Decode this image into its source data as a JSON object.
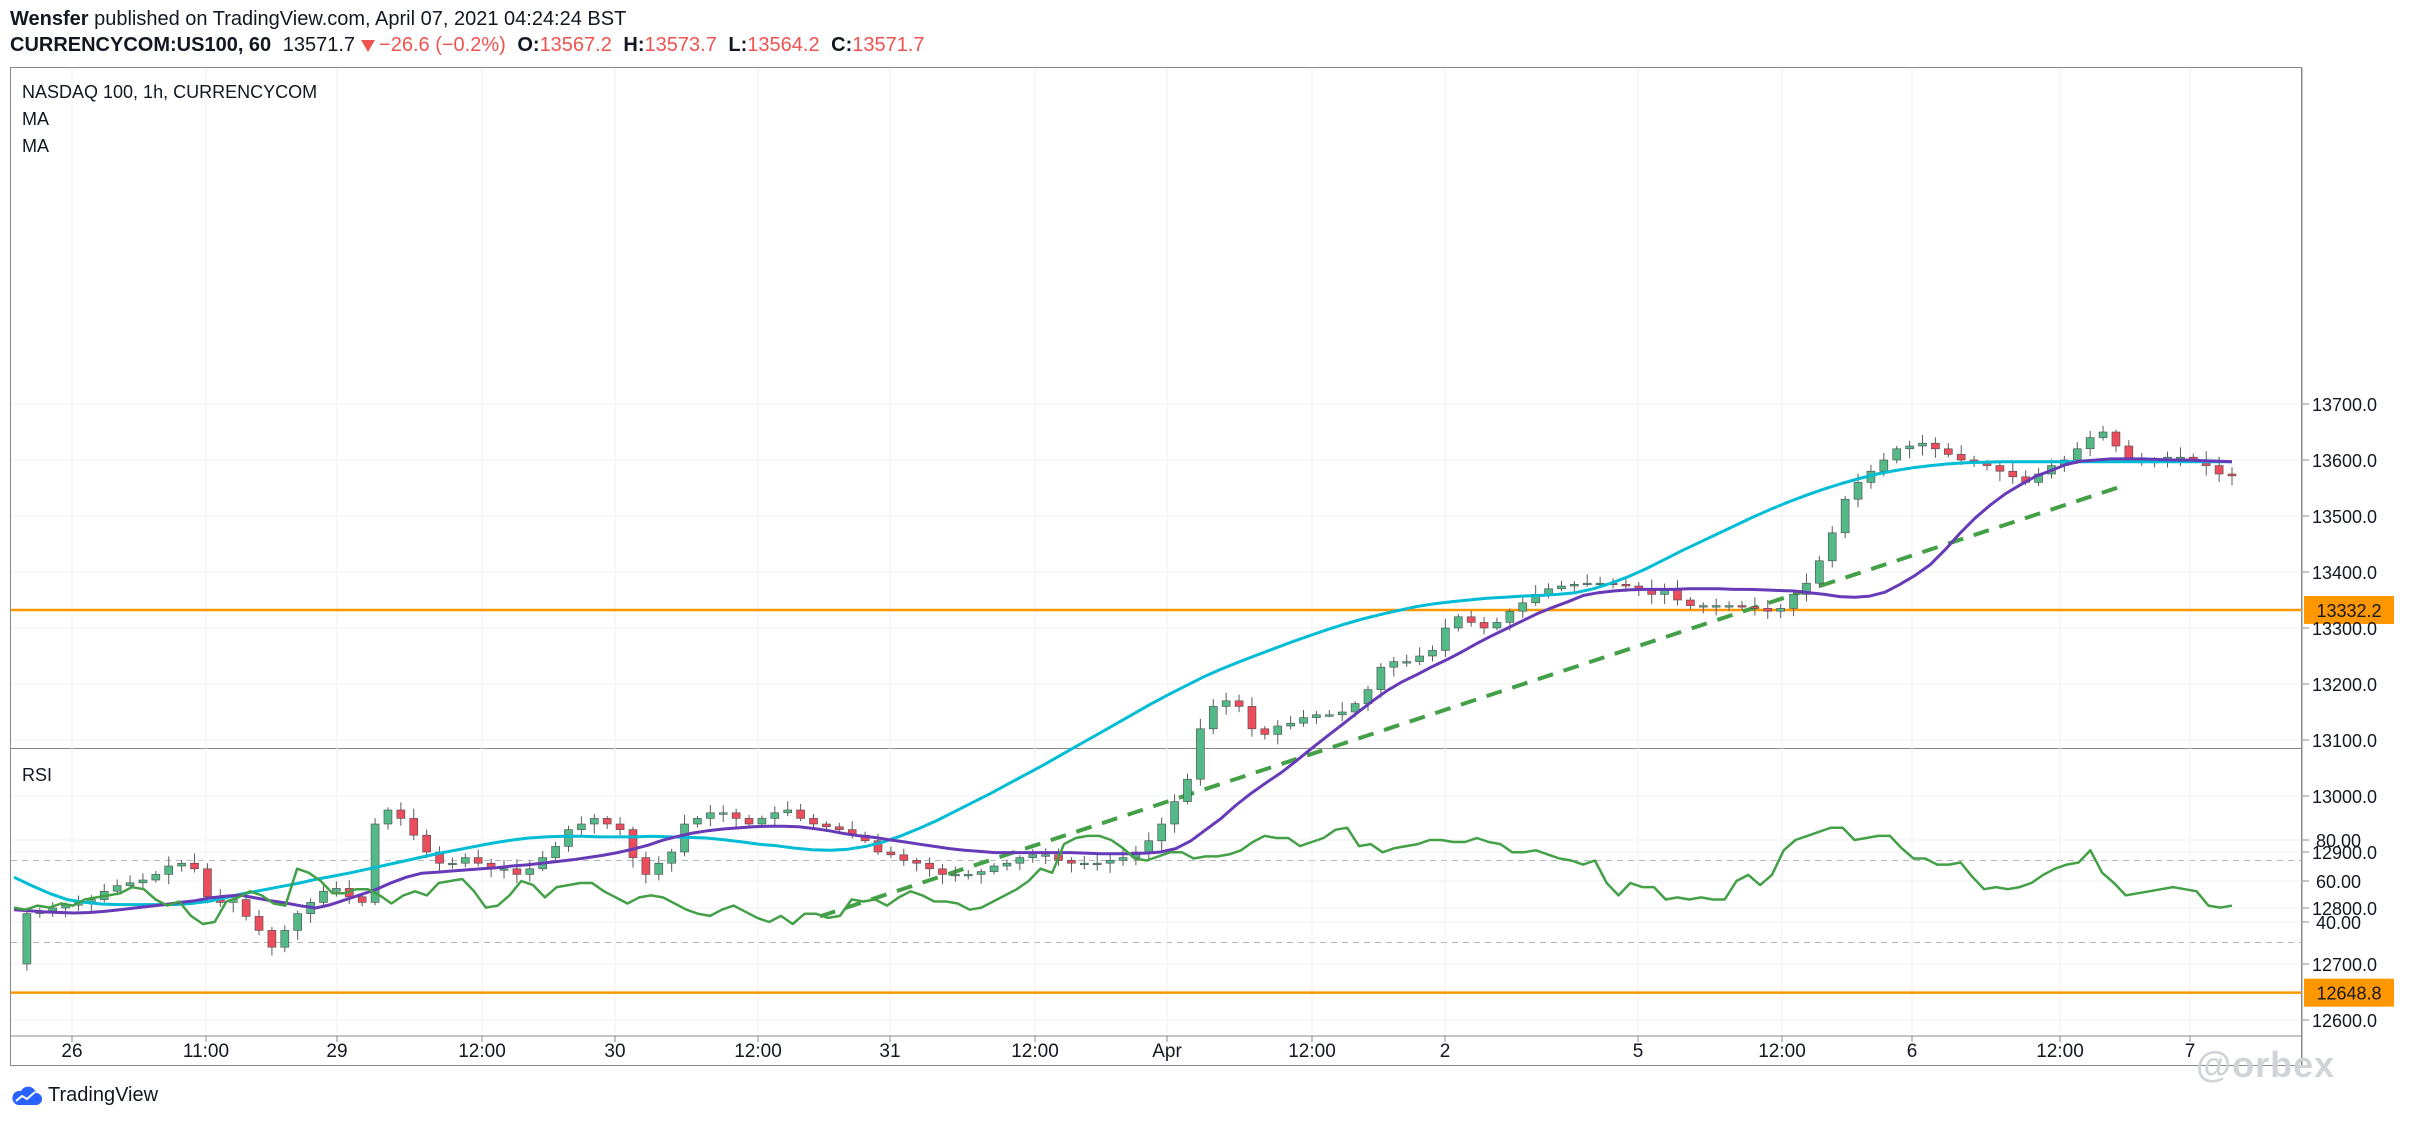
{
  "header": {
    "publisher_line_user": "Wensfer",
    "publisher_line_rest": "published on TradingView.com, April 07, 2021 04:24:24 BST",
    "symbol": "CURRENCYCOM:US100, 60",
    "last": "13571.7",
    "change": "−26.6 (−0.2%)",
    "open_label": "O:",
    "open": "13567.2",
    "high_label": "H:",
    "high": "13573.7",
    "low_label": "L:",
    "low": "13564.2",
    "close_label": "C:",
    "close": "13571.7"
  },
  "legend": {
    "title": "NASDAQ 100, 1h, CURRENCYCOM",
    "ma1": "MA",
    "ma2": "MA",
    "rsi": "RSI"
  },
  "footer": {
    "brand": "TradingView",
    "watermark": "@orbex"
  },
  "colors": {
    "up": "#53b987",
    "down": "#eb4d5c",
    "ma_fast": "#673ab7",
    "ma_slow": "#00bcd4",
    "level": "#ff9800",
    "trend": "#43a047",
    "rsi": "#43a047"
  },
  "chart_data": [
    {
      "type": "candlestick",
      "title": "NASDAQ 100, 1h, CURRENCYCOM",
      "ylim": [
        12560,
        13760
      ],
      "y_ticks": [
        "12600.0",
        "12700.0",
        "12800.0",
        "12900.0",
        "13000.0",
        "13100.0",
        "13200.0",
        "13300.0",
        "13400.0",
        "13500.0",
        "13600.0",
        "13700.0"
      ],
      "x_ticks": [
        "26",
        "11:00",
        "29",
        "12:00",
        "30",
        "12:00",
        "31",
        "12:00",
        "Apr",
        "12:00",
        "2",
        "5",
        "12:00",
        "6",
        "12:00",
        "7"
      ],
      "horizontal_levels": [
        13332.2,
        12648.8
      ],
      "price_path": [
        12700,
        12790,
        12795,
        12800,
        12805,
        12810,
        12815,
        12830,
        12840,
        12845,
        12850,
        12860,
        12875,
        12880,
        12870,
        12820,
        12810,
        12815,
        12785,
        12760,
        12730,
        12760,
        12790,
        12810,
        12830,
        12835,
        12820,
        12810,
        12950,
        12975,
        12960,
        12930,
        12900,
        12880,
        12880,
        12890,
        12880,
        12870,
        12870,
        12860,
        12870,
        12890,
        12910,
        12940,
        12950,
        12960,
        12950,
        12940,
        12890,
        12860,
        12880,
        12900,
        12950,
        12960,
        12970,
        12970,
        12960,
        12950,
        12960,
        12970,
        12975,
        12960,
        12950,
        12945,
        12940,
        12930,
        12920,
        12900,
        12895,
        12885,
        12880,
        12870,
        12860,
        12860,
        12860,
        12865,
        12875,
        12880,
        12890,
        12895,
        12895,
        12885,
        12880,
        12880,
        12880,
        12885,
        12890,
        12900,
        12920,
        12950,
        12990,
        13030,
        13120,
        13160,
        13170,
        13160,
        13120,
        13110,
        13125,
        13130,
        13140,
        13145,
        13145,
        13150,
        13165,
        13190,
        13230,
        13240,
        13240,
        13250,
        13260,
        13300,
        13320,
        13310,
        13300,
        13310,
        13330,
        13345,
        13360,
        13370,
        13375,
        13378,
        13380,
        13380,
        13378,
        13375,
        13370,
        13360,
        13370,
        13350,
        13340,
        13340,
        13340,
        13340,
        13338,
        13335,
        13330,
        13335,
        13360,
        13380,
        13420,
        13470,
        13530,
        13560,
        13580,
        13600,
        13620,
        13625,
        13630,
        13620,
        13610,
        13600,
        13595,
        13590,
        13580,
        13570,
        13560,
        13575,
        13590,
        13600,
        13620,
        13640,
        13650,
        13625,
        13600,
        13595,
        13600,
        13605,
        13605,
        13600,
        13590,
        13575,
        13571.7
      ],
      "ma_fast": [
        12797,
        12795,
        12793,
        12792,
        12791,
        12792,
        12794,
        12797,
        12800,
        12803,
        12806,
        12810,
        12813,
        12818,
        12821,
        12823,
        12818,
        12813,
        12809,
        12804,
        12800,
        12806,
        12815,
        12824,
        12833,
        12845,
        12855,
        12862,
        12864,
        12866,
        12868,
        12870,
        12872,
        12875,
        12877,
        12880,
        12883,
        12886,
        12890,
        12894,
        12899,
        12905,
        12912,
        12921,
        12928,
        12934,
        12938,
        12941,
        12943,
        12945,
        12946,
        12946,
        12945,
        12942,
        12938,
        12933,
        12929,
        12926,
        12922,
        12918,
        12914,
        12910,
        12906,
        12903,
        12901,
        12899,
        12899,
        12899,
        12899,
        12899,
        12899,
        12898,
        12897,
        12897,
        12897,
        12898,
        12900,
        12906,
        12920,
        12940,
        12960,
        12984,
        13005,
        13024,
        13042,
        13063,
        13085,
        13106,
        13127,
        13148,
        13169,
        13188,
        13204,
        13217,
        13231,
        13244,
        13258,
        13273,
        13287,
        13300,
        13313,
        13326,
        13337,
        13347,
        13358,
        13363,
        13366,
        13368,
        13369,
        13369,
        13369,
        13370,
        13370,
        13370,
        13369,
        13369,
        13368,
        13367,
        13366,
        13363,
        13360,
        13356,
        13355,
        13357,
        13364,
        13378,
        13394,
        13413,
        13440,
        13470,
        13497,
        13520,
        13540,
        13556,
        13571,
        13581,
        13592,
        13598,
        13600,
        13602,
        13602,
        13602,
        13601,
        13600,
        13600,
        13599,
        13598,
        13597
      ],
      "ma_slow": [
        12855,
        12840,
        12826,
        12815,
        12810,
        12807,
        12806,
        12806,
        12806,
        12806,
        12808,
        12812,
        12819,
        12826,
        12832,
        12838,
        12844,
        12851,
        12857,
        12863,
        12870,
        12877,
        12884,
        12891,
        12898,
        12904,
        12910,
        12916,
        12921,
        12925,
        12927,
        12928,
        12928,
        12927,
        12927,
        12927,
        12928,
        12927,
        12926,
        12925,
        12922,
        12918,
        12914,
        12911,
        12907,
        12904,
        12903,
        12905,
        12910,
        12918,
        12929,
        12942,
        12956,
        12972,
        12988,
        13004,
        13021,
        13038,
        13055,
        13073,
        13091,
        13109,
        13127,
        13145,
        13163,
        13180,
        13196,
        13212,
        13226,
        13239,
        13251,
        13263,
        13275,
        13286,
        13297,
        13307,
        13316,
        13324,
        13331,
        13338,
        13343,
        13347,
        13350,
        13353,
        13355,
        13357,
        13358,
        13360,
        13363,
        13370,
        13380,
        13392,
        13406,
        13422,
        13438,
        13453,
        13468,
        13483,
        13498,
        13512,
        13525,
        13537,
        13548,
        13558,
        13567,
        13575,
        13581,
        13586,
        13590,
        13593,
        13595,
        13596,
        13597,
        13597,
        13597,
        13597,
        13597,
        13597,
        13597,
        13597,
        13597,
        13597,
        13597,
        13597,
        13597,
        13597
      ]
    },
    {
      "type": "line",
      "title": "RSI",
      "ylim": [
        26,
        90
      ],
      "y_ticks": [
        "40.00",
        "60.00",
        "80.00"
      ],
      "band": [
        30,
        70
      ],
      "values": [
        47,
        46,
        48,
        47,
        49,
        48,
        51,
        52,
        53,
        54,
        57,
        56,
        51,
        48,
        50,
        43,
        39,
        40,
        50,
        52,
        55,
        53,
        49,
        48,
        66,
        64,
        60,
        54,
        54,
        56,
        56,
        53,
        49,
        53,
        55,
        53,
        59,
        60,
        61,
        55,
        47,
        48,
        53,
        60,
        58,
        52,
        57,
        58,
        59,
        59,
        55,
        52,
        49,
        52,
        53,
        52,
        49,
        46,
        44,
        43,
        46,
        48,
        45,
        42,
        40,
        43,
        39,
        44,
        44,
        42,
        43,
        51,
        50,
        51,
        48,
        52,
        55,
        53,
        50,
        50,
        49,
        46,
        47,
        50,
        53,
        56,
        60,
        66,
        64,
        78,
        81,
        82,
        82,
        80,
        76,
        71,
        70,
        72,
        74,
        74,
        71,
        72,
        72,
        73,
        75,
        79,
        82,
        81,
        81,
        77,
        79,
        81,
        85,
        86,
        77,
        78,
        74,
        76,
        77,
        78,
        80,
        80,
        79,
        79,
        81,
        79,
        78,
        74,
        74,
        75,
        73,
        71,
        70,
        68,
        70,
        59,
        53,
        59,
        57,
        57,
        51,
        52,
        51,
        52,
        51,
        51,
        60,
        63,
        58,
        63,
        75,
        80,
        82,
        84,
        86,
        86,
        80,
        81,
        82,
        82,
        76,
        71,
        71,
        68,
        68,
        69,
        62,
        56,
        57,
        56,
        57,
        59,
        63,
        66,
        68,
        69,
        75,
        64,
        59,
        53,
        54,
        55,
        56,
        57,
        56,
        55,
        48,
        47,
        48
      ]
    }
  ]
}
